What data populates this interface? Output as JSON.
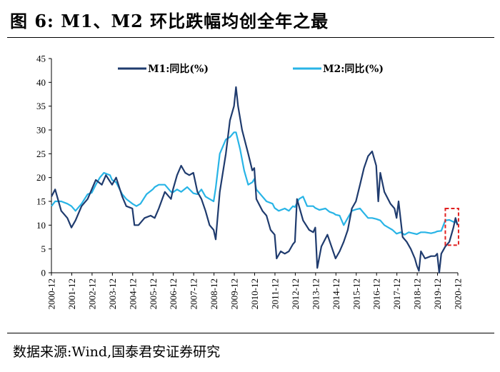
{
  "title": "图 6:    M1、M2 环比跌幅均创全年之最",
  "source": "数据来源:Wind,国泰君安证券研究",
  "chart_data": {
    "type": "line",
    "ylim": [
      0,
      45
    ],
    "yticks": [
      0,
      5,
      10,
      15,
      20,
      25,
      30,
      35,
      40,
      45
    ],
    "x_start": 2000.917,
    "x_end": 2020.917,
    "xtick_labels": [
      "2000-12",
      "2001-12",
      "2002-12",
      "2003-12",
      "2004-12",
      "2005-12",
      "2006-12",
      "2007-12",
      "2008-12",
      "2009-12",
      "2010-12",
      "2011-12",
      "2012-12",
      "2013-12",
      "2014-12",
      "2015-12",
      "2016-12",
      "2017-12",
      "2018-12",
      "2019-12",
      "2020-12"
    ],
    "legend": "top",
    "highlight_box": {
      "x": [
        2020.3,
        2020.95
      ],
      "y": [
        5.8,
        13.5
      ],
      "color": "#e02020"
    },
    "series": [
      {
        "name": "M1:同比(%)",
        "color": "#1f3b6e",
        "points": [
          [
            2000.92,
            16.0
          ],
          [
            2001.1,
            17.5
          ],
          [
            2001.4,
            13.0
          ],
          [
            2001.7,
            11.5
          ],
          [
            2001.9,
            9.5
          ],
          [
            2002.1,
            11.0
          ],
          [
            2002.4,
            14.0
          ],
          [
            2002.7,
            15.5
          ],
          [
            2002.9,
            17.5
          ],
          [
            2003.1,
            19.5
          ],
          [
            2003.4,
            18.5
          ],
          [
            2003.6,
            20.5
          ],
          [
            2003.9,
            18.5
          ],
          [
            2004.1,
            20.0
          ],
          [
            2004.4,
            16.0
          ],
          [
            2004.6,
            14.0
          ],
          [
            2004.9,
            13.5
          ],
          [
            2005.0,
            10.0
          ],
          [
            2005.2,
            10.0
          ],
          [
            2005.5,
            11.5
          ],
          [
            2005.8,
            12.0
          ],
          [
            2006.0,
            11.5
          ],
          [
            2006.2,
            13.5
          ],
          [
            2006.5,
            17.0
          ],
          [
            2006.8,
            15.5
          ],
          [
            2006.9,
            17.5
          ],
          [
            2007.1,
            20.5
          ],
          [
            2007.3,
            22.5
          ],
          [
            2007.5,
            21.0
          ],
          [
            2007.7,
            20.5
          ],
          [
            2007.9,
            21.0
          ],
          [
            2008.1,
            17.0
          ],
          [
            2008.3,
            15.5
          ],
          [
            2008.5,
            13.0
          ],
          [
            2008.7,
            10.0
          ],
          [
            2008.9,
            9.0
          ],
          [
            2009.0,
            7.0
          ],
          [
            2009.2,
            17.0
          ],
          [
            2009.5,
            25.0
          ],
          [
            2009.7,
            32.0
          ],
          [
            2009.9,
            35.0
          ],
          [
            2010.0,
            39.0
          ],
          [
            2010.1,
            35.0
          ],
          [
            2010.3,
            30.0
          ],
          [
            2010.6,
            25.0
          ],
          [
            2010.8,
            21.5
          ],
          [
            2010.9,
            22.0
          ],
          [
            2011.0,
            15.5
          ],
          [
            2011.3,
            13.0
          ],
          [
            2011.5,
            12.0
          ],
          [
            2011.7,
            9.0
          ],
          [
            2011.9,
            8.0
          ],
          [
            2012.0,
            3.0
          ],
          [
            2012.2,
            4.5
          ],
          [
            2012.4,
            4.0
          ],
          [
            2012.6,
            4.5
          ],
          [
            2012.8,
            6.0
          ],
          [
            2012.9,
            6.5
          ],
          [
            2013.0,
            15.5
          ],
          [
            2013.3,
            11.0
          ],
          [
            2013.6,
            9.0
          ],
          [
            2013.8,
            8.5
          ],
          [
            2013.9,
            9.5
          ],
          [
            2014.0,
            1.0
          ],
          [
            2014.2,
            5.5
          ],
          [
            2014.5,
            8.0
          ],
          [
            2014.7,
            5.5
          ],
          [
            2014.9,
            3.0
          ],
          [
            2015.1,
            4.5
          ],
          [
            2015.3,
            6.5
          ],
          [
            2015.5,
            9.0
          ],
          [
            2015.7,
            13.5
          ],
          [
            2015.9,
            15.0
          ],
          [
            2016.1,
            18.5
          ],
          [
            2016.3,
            22.0
          ],
          [
            2016.5,
            24.5
          ],
          [
            2016.7,
            25.5
          ],
          [
            2016.9,
            22.5
          ],
          [
            2017.0,
            15.0
          ],
          [
            2017.1,
            21.0
          ],
          [
            2017.3,
            17.0
          ],
          [
            2017.6,
            14.5
          ],
          [
            2017.8,
            13.5
          ],
          [
            2017.9,
            11.5
          ],
          [
            2018.0,
            15.0
          ],
          [
            2018.2,
            7.5
          ],
          [
            2018.4,
            6.5
          ],
          [
            2018.6,
            5.0
          ],
          [
            2018.8,
            3.0
          ],
          [
            2018.9,
            1.5
          ],
          [
            2019.0,
            0.4
          ],
          [
            2019.1,
            4.5
          ],
          [
            2019.3,
            3.0
          ],
          [
            2019.6,
            3.5
          ],
          [
            2019.8,
            3.5
          ],
          [
            2019.9,
            4.0
          ],
          [
            2020.0,
            0.0
          ],
          [
            2020.1,
            4.0
          ],
          [
            2020.3,
            5.5
          ],
          [
            2020.5,
            6.5
          ],
          [
            2020.7,
            9.5
          ],
          [
            2020.8,
            11.5
          ],
          [
            2020.9,
            10.0
          ]
        ]
      },
      {
        "name": "M2:同比(%)",
        "color": "#28b4e6",
        "points": [
          [
            2000.92,
            14.0
          ],
          [
            2001.1,
            15.0
          ],
          [
            2001.4,
            15.0
          ],
          [
            2001.7,
            14.5
          ],
          [
            2001.9,
            14.0
          ],
          [
            2002.1,
            13.0
          ],
          [
            2002.4,
            14.5
          ],
          [
            2002.7,
            16.5
          ],
          [
            2002.9,
            16.8
          ],
          [
            2003.1,
            18.5
          ],
          [
            2003.3,
            20.0
          ],
          [
            2003.5,
            21.0
          ],
          [
            2003.8,
            20.5
          ],
          [
            2003.9,
            19.5
          ],
          [
            2004.1,
            19.0
          ],
          [
            2004.4,
            16.5
          ],
          [
            2004.6,
            15.5
          ],
          [
            2004.9,
            14.5
          ],
          [
            2005.1,
            14.0
          ],
          [
            2005.3,
            14.5
          ],
          [
            2005.6,
            16.5
          ],
          [
            2005.9,
            17.5
          ],
          [
            2006.0,
            18.0
          ],
          [
            2006.2,
            18.5
          ],
          [
            2006.5,
            18.5
          ],
          [
            2006.8,
            17.0
          ],
          [
            2006.9,
            16.9
          ],
          [
            2007.1,
            17.5
          ],
          [
            2007.3,
            17.0
          ],
          [
            2007.6,
            18.0
          ],
          [
            2007.9,
            16.7
          ],
          [
            2008.1,
            16.5
          ],
          [
            2008.3,
            17.5
          ],
          [
            2008.5,
            16.0
          ],
          [
            2008.7,
            15.5
          ],
          [
            2008.9,
            15.0
          ],
          [
            2009.0,
            17.8
          ],
          [
            2009.2,
            25.0
          ],
          [
            2009.5,
            28.0
          ],
          [
            2009.7,
            28.5
          ],
          [
            2009.9,
            29.5
          ],
          [
            2010.0,
            29.5
          ],
          [
            2010.2,
            26.0
          ],
          [
            2010.4,
            21.5
          ],
          [
            2010.6,
            18.5
          ],
          [
            2010.8,
            19.0
          ],
          [
            2010.9,
            19.7
          ],
          [
            2011.0,
            17.5
          ],
          [
            2011.3,
            16.0
          ],
          [
            2011.5,
            15.0
          ],
          [
            2011.8,
            14.5
          ],
          [
            2011.9,
            13.6
          ],
          [
            2012.1,
            13.0
          ],
          [
            2012.4,
            13.5
          ],
          [
            2012.6,
            13.0
          ],
          [
            2012.8,
            14.0
          ],
          [
            2012.9,
            13.8
          ],
          [
            2013.1,
            15.5
          ],
          [
            2013.3,
            16.0
          ],
          [
            2013.5,
            14.0
          ],
          [
            2013.8,
            14.0
          ],
          [
            2013.9,
            13.6
          ],
          [
            2014.1,
            13.2
          ],
          [
            2014.4,
            13.5
          ],
          [
            2014.6,
            12.8
          ],
          [
            2014.8,
            12.5
          ],
          [
            2014.9,
            12.2
          ],
          [
            2015.1,
            12.0
          ],
          [
            2015.3,
            10.0
          ],
          [
            2015.5,
            11.5
          ],
          [
            2015.7,
            13.0
          ],
          [
            2015.9,
            13.3
          ],
          [
            2016.1,
            13.5
          ],
          [
            2016.3,
            12.5
          ],
          [
            2016.5,
            11.5
          ],
          [
            2016.7,
            11.5
          ],
          [
            2016.9,
            11.3
          ],
          [
            2017.1,
            11.0
          ],
          [
            2017.3,
            10.0
          ],
          [
            2017.5,
            9.5
          ],
          [
            2017.7,
            9.0
          ],
          [
            2017.9,
            8.2
          ],
          [
            2018.1,
            8.5
          ],
          [
            2018.3,
            8.0
          ],
          [
            2018.5,
            8.5
          ],
          [
            2018.7,
            8.3
          ],
          [
            2018.9,
            8.1
          ],
          [
            2019.1,
            8.5
          ],
          [
            2019.3,
            8.5
          ],
          [
            2019.6,
            8.3
          ],
          [
            2019.8,
            8.5
          ],
          [
            2019.9,
            8.7
          ],
          [
            2020.1,
            8.8
          ],
          [
            2020.3,
            11.0
          ],
          [
            2020.5,
            11.1
          ],
          [
            2020.7,
            10.7
          ],
          [
            2020.8,
            10.7
          ],
          [
            2020.9,
            10.3
          ]
        ]
      }
    ]
  }
}
